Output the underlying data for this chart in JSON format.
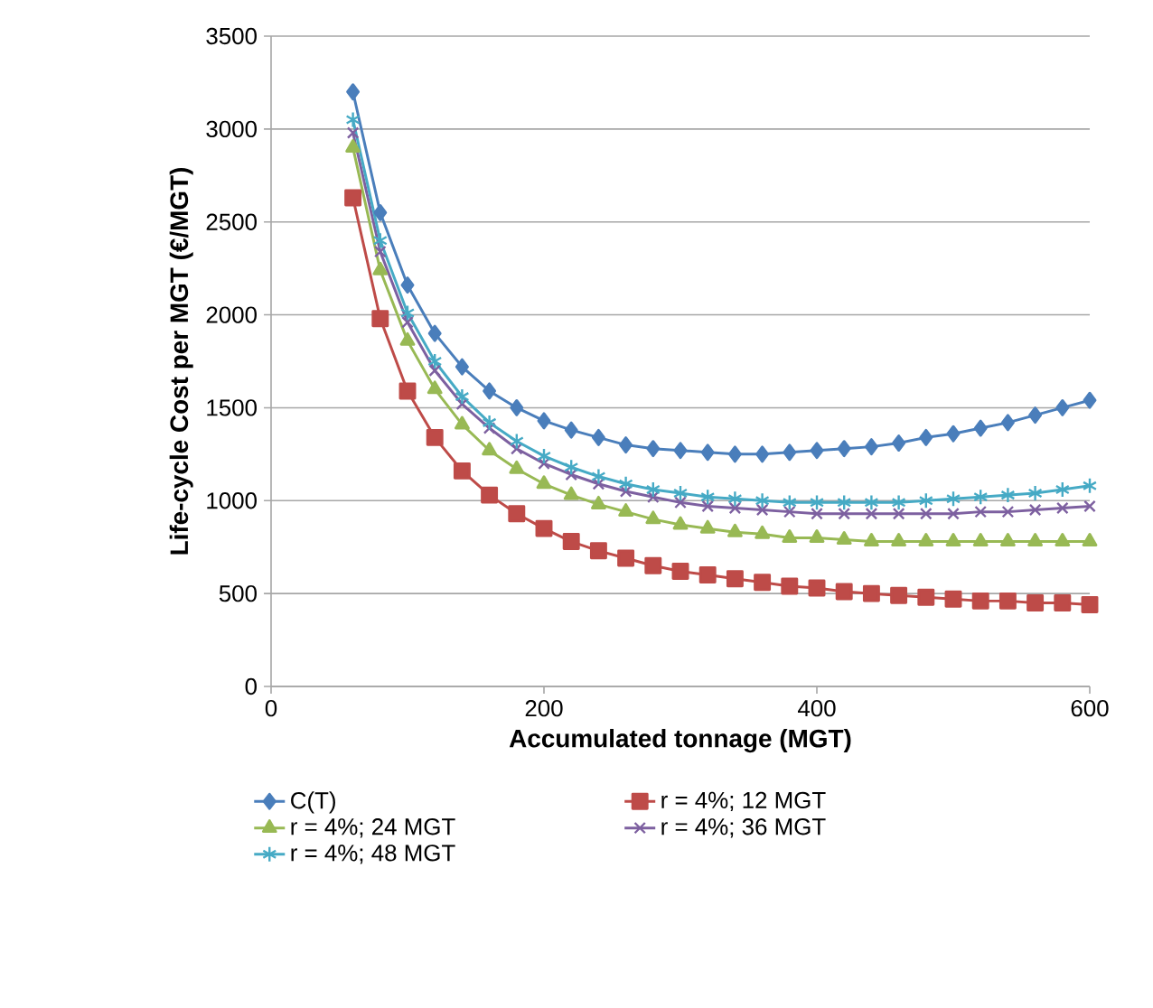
{
  "chart_data": {
    "type": "line",
    "xlabel": "Accumulated tonnage (MGT)",
    "ylabel": "Life-cycle Cost per MGT (€/MGT)",
    "x": [
      60,
      80,
      100,
      120,
      140,
      160,
      180,
      200,
      220,
      240,
      260,
      280,
      300,
      320,
      340,
      360,
      380,
      400,
      420,
      440,
      460,
      480,
      500,
      520,
      540,
      560,
      580,
      600
    ],
    "series": [
      {
        "name": "C(T)",
        "color": "#4a7ebb",
        "marker": "diamond",
        "values": [
          3200,
          2550,
          2160,
          1900,
          1720,
          1590,
          1500,
          1430,
          1380,
          1340,
          1300,
          1280,
          1270,
          1260,
          1250,
          1250,
          1260,
          1270,
          1280,
          1290,
          1310,
          1340,
          1360,
          1390,
          1420,
          1460,
          1500,
          1540
        ]
      },
      {
        "name": "r = 4%; 12 MGT",
        "color": "#be4b48",
        "marker": "square",
        "values": [
          2630,
          1980,
          1590,
          1340,
          1160,
          1030,
          930,
          850,
          780,
          730,
          690,
          650,
          620,
          600,
          580,
          560,
          540,
          530,
          510,
          500,
          490,
          480,
          470,
          460,
          460,
          450,
          450,
          440
        ]
      },
      {
        "name": "r = 4%; 24 MGT",
        "color": "#98b954",
        "marker": "triangle",
        "values": [
          2900,
          2240,
          1860,
          1600,
          1410,
          1270,
          1170,
          1090,
          1030,
          980,
          940,
          900,
          870,
          850,
          830,
          820,
          800,
          800,
          790,
          780,
          780,
          780,
          780,
          780,
          780,
          780,
          780,
          780
        ]
      },
      {
        "name": "r = 4%; 36 MGT",
        "color": "#7d60a0",
        "marker": "cross",
        "values": [
          2980,
          2340,
          1960,
          1700,
          1520,
          1390,
          1280,
          1200,
          1140,
          1090,
          1050,
          1020,
          990,
          970,
          960,
          950,
          940,
          930,
          930,
          930,
          930,
          930,
          930,
          940,
          940,
          950,
          960,
          970
        ]
      },
      {
        "name": "r = 4%; 48 MGT",
        "color": "#46aac5",
        "marker": "cross",
        "values": [
          3050,
          2400,
          2010,
          1750,
          1560,
          1420,
          1320,
          1240,
          1180,
          1130,
          1090,
          1060,
          1040,
          1020,
          1010,
          1000,
          990,
          990,
          990,
          990,
          990,
          1000,
          1010,
          1020,
          1030,
          1040,
          1060,
          1080
        ]
      }
    ],
    "xlim": [
      0,
      600
    ],
    "ylim": [
      0,
      3500
    ],
    "xticks": [
      0,
      200,
      400,
      600
    ],
    "yticks": [
      0,
      500,
      1000,
      1500,
      2000,
      2500,
      3000,
      3500
    ],
    "grid": "y",
    "legend": "bottom",
    "line_style": "solid"
  }
}
